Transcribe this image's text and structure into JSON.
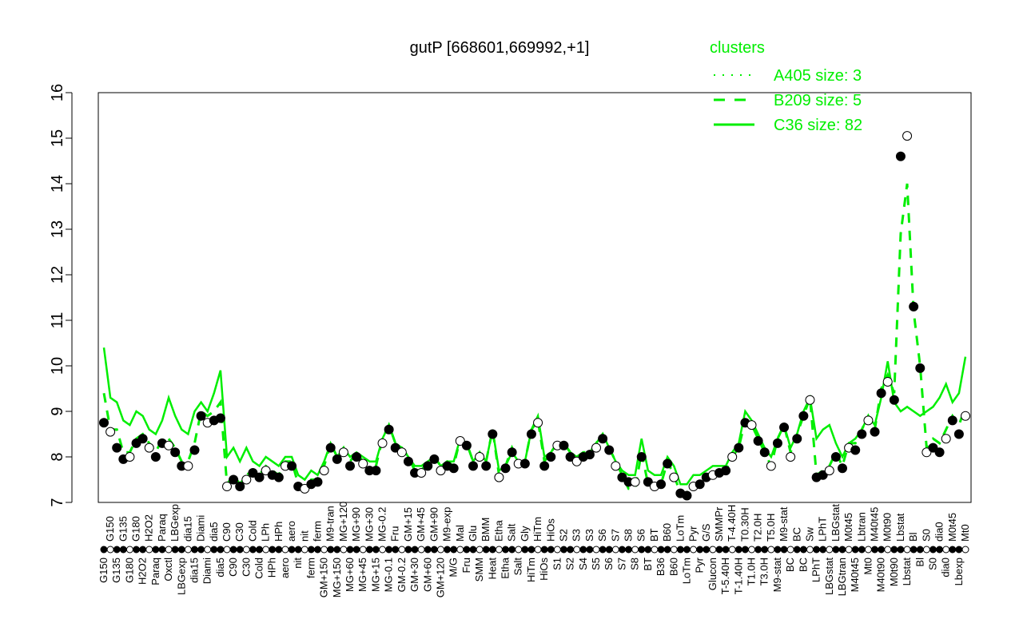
{
  "chart_data": {
    "type": "scatter",
    "title": "gutP [668601,669992,+1]",
    "xlabel": "",
    "ylabel": "",
    "ylim": [
      7,
      16
    ],
    "yticks": [
      7,
      8,
      9,
      10,
      11,
      12,
      13,
      14,
      15,
      16
    ],
    "legend": {
      "title": "clusters",
      "placement": "top-right",
      "color": "#00ee00",
      "entries": [
        {
          "label": "A405 size: 3",
          "style": "dotted"
        },
        {
          "label": "B209 size: 5",
          "style": "dashed"
        },
        {
          "label": "C36 size: 82",
          "style": "solid"
        }
      ]
    },
    "categories": [
      "G150",
      "G150",
      "G135",
      "G135",
      "G180",
      "G180",
      "H2O2",
      "H2O2",
      "Paraq",
      "Paraq",
      "Oxctl",
      "LBGexp",
      "LBGexp",
      "dia15",
      "dia15",
      "Diami",
      "Diami",
      "dia5",
      "dia5",
      "C90",
      "C90",
      "C30",
      "C30",
      "Cold",
      "Cold",
      "LPh",
      "HPh",
      "HPh",
      "aero",
      "aero",
      "nit",
      "nit",
      "ferm",
      "ferm",
      "GM+150",
      "M9-tran",
      "MG+150",
      "MG+120",
      "MG+60",
      "MG+90",
      "MG+45",
      "MG+30",
      "MG+15",
      "MG-0.2",
      "MG-0.1",
      "Fru",
      "GM-0.2",
      "GM+15",
      "GM+30",
      "GM+45",
      "GM+60",
      "GM+90",
      "GM+120",
      "M9-exp",
      "M/G",
      "Mal",
      "Fru",
      "Glu",
      "SMM",
      "BMM",
      "Heat",
      "Etha",
      "Etha",
      "Salt",
      "Salt",
      "Gly",
      "HiTm",
      "HiTm",
      "HiOs",
      "HiOs",
      "S1",
      "S2",
      "S2",
      "S3",
      "S4",
      "S3",
      "S5",
      "S6",
      "S6",
      "S7",
      "S7",
      "S8",
      "S8",
      "S6",
      "BT",
      "BT",
      "B36",
      "B60",
      "B60",
      "LoTm",
      "LoTm",
      "Pyr",
      "Pyr",
      "G/S",
      "Glucon",
      "SMMPr",
      "T-5.40H",
      "T-4.40H",
      "T-1.40H",
      "T0.30H",
      "T1.0H",
      "T2.0H",
      "T3.0H",
      "T5.0H",
      "M9-stat",
      "M9-stat",
      "BC",
      "BC",
      "BC",
      "Sw",
      "LPhT",
      "LPhT",
      "LBGstat",
      "LBGstat",
      "LBGtran",
      "M0t45",
      "M40t45",
      "Lbtran",
      "Mt0",
      "M40t45",
      "M40t90",
      "M0t90",
      "M0t90",
      "Lbstat",
      "Lbstat",
      "Bl",
      "Bl",
      "S0",
      "S0",
      "dia0",
      "dia0",
      "M0t45",
      "Lbexp",
      "Mt0"
    ],
    "series": [
      {
        "name": "points",
        "values": [
          8.75,
          8.55,
          8.2,
          7.95,
          8.0,
          8.3,
          8.4,
          8.2,
          8.0,
          8.3,
          8.25,
          8.1,
          7.8,
          7.8,
          8.15,
          8.9,
          8.75,
          8.8,
          8.85,
          7.35,
          7.5,
          7.35,
          7.5,
          7.65,
          7.55,
          7.7,
          7.6,
          7.55,
          7.8,
          7.8,
          7.35,
          7.3,
          7.4,
          7.45,
          7.7,
          8.2,
          7.95,
          8.1,
          7.8,
          8.0,
          7.85,
          7.7,
          7.7,
          8.3,
          8.6,
          8.2,
          8.1,
          7.9,
          7.65,
          7.65,
          7.8,
          7.95,
          7.7,
          7.8,
          7.75,
          8.35,
          8.25,
          7.8,
          8.0,
          7.8,
          8.5,
          7.55,
          7.75,
          8.1,
          7.85,
          7.85,
          8.5,
          8.75,
          7.8,
          8.0,
          8.25,
          8.25,
          8.0,
          7.9,
          8.0,
          8.05,
          8.2,
          8.4,
          8.15,
          7.8,
          7.55,
          7.45,
          7.45,
          8.0,
          7.45,
          7.35,
          7.4,
          7.85,
          7.55,
          7.2,
          7.15,
          7.35,
          7.4,
          7.55,
          7.6,
          7.65,
          7.7,
          8.0,
          8.2,
          8.75,
          8.7,
          8.35,
          8.1,
          7.8,
          8.3,
          8.65,
          8.0,
          8.4,
          8.9,
          9.25,
          7.55,
          7.6,
          7.7,
          8.0,
          7.75,
          8.2,
          8.15,
          8.5,
          8.8,
          8.55,
          9.4,
          9.65,
          9.25,
          14.6,
          15.05,
          11.3,
          9.95,
          8.1,
          8.2,
          8.1,
          8.4,
          8.8,
          8.5,
          8.9
        ]
      },
      {
        "name": "C36 size: 82",
        "values": [
          10.4,
          9.3,
          9.2,
          8.8,
          8.7,
          9.0,
          8.9,
          8.6,
          8.5,
          8.8,
          9.3,
          8.9,
          8.6,
          8.5,
          9.0,
          9.2,
          9.0,
          9.4,
          9.9,
          8.0,
          8.2,
          7.9,
          8.2,
          7.9,
          7.8,
          8.0,
          7.9,
          7.8,
          8.0,
          8.0,
          7.6,
          7.5,
          7.7,
          7.6,
          7.9,
          8.3,
          8.0,
          8.2,
          8.0,
          8.1,
          8.0,
          7.9,
          7.9,
          8.4,
          8.7,
          8.3,
          8.2,
          8.0,
          7.8,
          7.8,
          7.9,
          8.0,
          7.8,
          7.9,
          7.9,
          8.4,
          8.3,
          7.9,
          8.1,
          7.9,
          8.6,
          7.7,
          7.8,
          8.1,
          7.9,
          7.9,
          8.6,
          8.9,
          8.0,
          8.1,
          8.3,
          8.3,
          8.1,
          8.0,
          8.0,
          8.1,
          8.3,
          8.5,
          8.2,
          7.9,
          7.7,
          7.6,
          7.6,
          8.4,
          7.7,
          7.6,
          7.6,
          8.0,
          7.8,
          7.4,
          7.4,
          7.6,
          7.6,
          7.7,
          7.8,
          7.8,
          7.8,
          8.1,
          8.3,
          9.0,
          8.8,
          8.5,
          8.2,
          8.0,
          8.4,
          8.7,
          8.2,
          8.5,
          9.0,
          9.3,
          8.4,
          8.6,
          8.7,
          8.3,
          8.0,
          8.3,
          8.4,
          8.6,
          8.9,
          8.7,
          9.3,
          10.1,
          9.2,
          9.0,
          9.1,
          9.0,
          8.9,
          9.0,
          9.1,
          9.3,
          9.6,
          9.2,
          9.4,
          10.2
        ]
      },
      {
        "name": "B209 size: 5",
        "values": [
          9.4,
          8.6,
          8.6,
          8.1,
          8.1,
          8.4,
          8.5,
          8.3,
          8.1,
          8.4,
          8.4,
          8.2,
          7.9,
          7.9,
          8.3,
          9.0,
          8.9,
          9.0,
          9.2,
          7.4,
          7.6,
          7.4,
          7.6,
          7.7,
          7.6,
          7.8,
          7.7,
          7.6,
          7.9,
          7.9,
          7.4,
          7.3,
          7.5,
          7.5,
          7.8,
          8.3,
          8.0,
          8.2,
          7.9,
          8.1,
          7.9,
          7.8,
          7.8,
          8.4,
          8.7,
          8.3,
          8.2,
          8.0,
          7.7,
          7.7,
          7.9,
          8.0,
          7.8,
          7.9,
          7.8,
          8.4,
          8.3,
          7.9,
          8.1,
          7.9,
          8.6,
          7.6,
          7.8,
          8.2,
          7.9,
          7.9,
          8.6,
          8.8,
          7.9,
          8.1,
          8.3,
          8.3,
          8.1,
          8.0,
          8.1,
          8.1,
          8.3,
          8.5,
          8.2,
          7.9,
          7.6,
          7.3,
          7.3,
          8.1,
          7.4,
          7.3,
          7.4,
          7.9,
          7.6,
          7.2,
          7.2,
          7.4,
          7.4,
          7.6,
          7.6,
          7.7,
          7.7,
          8.0,
          8.2,
          8.8,
          8.7,
          8.4,
          8.1,
          7.8,
          8.4,
          8.7,
          8.1,
          8.5,
          8.9,
          9.3,
          7.6,
          7.7,
          7.8,
          8.1,
          7.8,
          8.3,
          8.3,
          8.6,
          8.9,
          8.6,
          9.5,
          9.8,
          9.4,
          12.9,
          14.0,
          11.2,
          10.0,
          8.2,
          8.4,
          8.3,
          8.6,
          8.9,
          8.7,
          9.1
        ]
      }
    ]
  }
}
